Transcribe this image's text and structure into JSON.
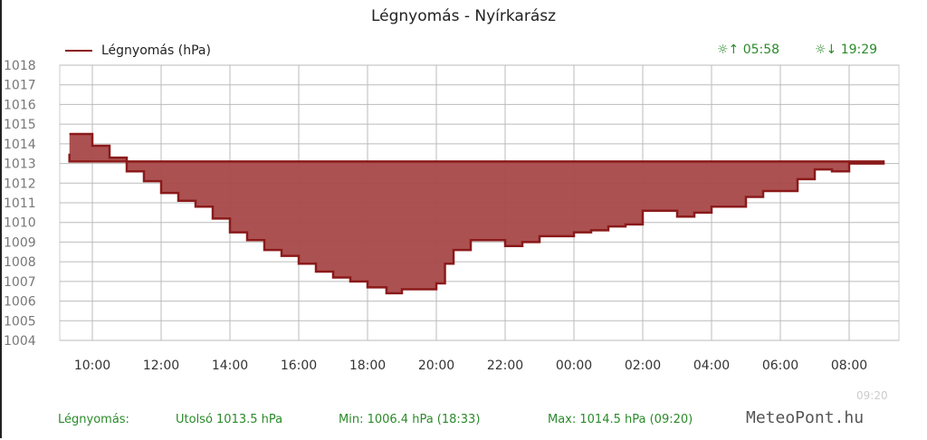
{
  "chart_data": {
    "type": "area",
    "title": "Légnyomás - Nyírkarász",
    "legend": "Légnyomás (hPa)",
    "legend_placement": "top-left",
    "grid": true,
    "color": "#8b1a1a",
    "ylim": [
      1004,
      1018
    ],
    "yticks": [
      "1018",
      "1017",
      "1016",
      "1015",
      "1014",
      "1013",
      "1012",
      "1011",
      "1010",
      "1009",
      "1008",
      "1007",
      "1006",
      "1005",
      "1004"
    ],
    "xticks": [
      "10:00",
      "12:00",
      "14:00",
      "16:00",
      "18:00",
      "20:00",
      "22:00",
      "00:00",
      "02:00",
      "04:00",
      "06:00",
      "08:00"
    ],
    "x": [
      "09:20",
      "10:00",
      "10:30",
      "11:00",
      "11:30",
      "12:00",
      "12:30",
      "13:00",
      "13:30",
      "14:00",
      "14:30",
      "15:00",
      "15:30",
      "16:00",
      "16:30",
      "17:00",
      "17:30",
      "18:00",
      "18:33",
      "19:00",
      "19:30",
      "20:00",
      "20:15",
      "20:30",
      "21:00",
      "21:30",
      "22:00",
      "22:30",
      "23:00",
      "23:30",
      "00:00",
      "00:30",
      "01:00",
      "01:30",
      "02:00",
      "02:30",
      "03:00",
      "03:30",
      "04:00",
      "04:30",
      "05:00",
      "05:30",
      "06:00",
      "06:30",
      "07:00",
      "07:30",
      "08:00",
      "08:30",
      "09:00",
      "09:20"
    ],
    "values": [
      1014.5,
      1013.9,
      1013.3,
      1012.6,
      1012.1,
      1011.5,
      1011.1,
      1010.8,
      1010.2,
      1009.5,
      1009.1,
      1008.6,
      1008.3,
      1007.9,
      1007.5,
      1007.2,
      1007.0,
      1006.7,
      1006.4,
      1006.6,
      1006.6,
      1006.9,
      1007.9,
      1008.6,
      1009.1,
      1009.1,
      1008.8,
      1009.0,
      1009.3,
      1009.3,
      1009.5,
      1009.6,
      1009.8,
      1009.9,
      1010.6,
      1010.6,
      1010.3,
      1010.5,
      1010.8,
      1010.8,
      1011.3,
      1011.6,
      1011.6,
      1012.2,
      1012.7,
      1012.6,
      1013.0,
      1013.0,
      1013.1,
      1013.5
    ]
  },
  "sun": {
    "rise": "☼↑ 05:58",
    "set": "☼↓ 19:29"
  },
  "footer": {
    "label": "Légnyomás:",
    "last": "Utolsó 1013.5 hPa",
    "min": "Min: 1006.4 hPa (18:33)",
    "max": "Max: 1014.5 hPa (09:20)"
  },
  "brand": "MeteoPont.hu",
  "stamp": "09:20"
}
